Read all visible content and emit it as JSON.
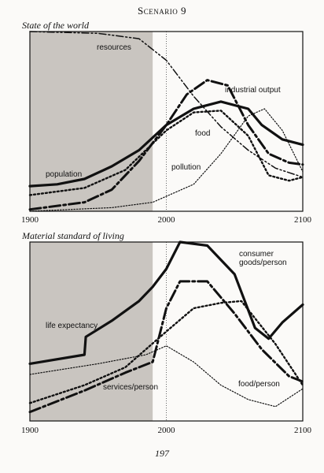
{
  "header": {
    "title": "Scenario 9"
  },
  "page_number": "197",
  "chart_data": [
    {
      "type": "line",
      "title": "State of the world",
      "xlim": [
        1900,
        2100
      ],
      "x_ticks": [
        "1900",
        "2000",
        "2100"
      ],
      "historical_region": [
        1900,
        1990
      ],
      "present_marker": 2000,
      "series": [
        {
          "name": "resources",
          "style": "dash-dot-dot",
          "points": [
            [
              1900,
              1.0
            ],
            [
              1950,
              0.99
            ],
            [
              1980,
              0.96
            ],
            [
              2000,
              0.84
            ],
            [
              2020,
              0.64
            ],
            [
              2040,
              0.47
            ],
            [
              2060,
              0.34
            ],
            [
              2080,
              0.24
            ],
            [
              2100,
              0.19
            ]
          ]
        },
        {
          "name": "population",
          "style": "thick-solid",
          "points": [
            [
              1900,
              0.14
            ],
            [
              1920,
              0.15
            ],
            [
              1940,
              0.18
            ],
            [
              1960,
              0.25
            ],
            [
              1980,
              0.34
            ],
            [
              2000,
              0.48
            ],
            [
              2020,
              0.57
            ],
            [
              2040,
              0.61
            ],
            [
              2060,
              0.57
            ],
            [
              2070,
              0.48
            ],
            [
              2085,
              0.4
            ],
            [
              2100,
              0.37
            ]
          ]
        },
        {
          "name": "industrial output",
          "style": "thick-dash-dot",
          "points": [
            [
              1900,
              0.01
            ],
            [
              1940,
              0.05
            ],
            [
              1960,
              0.12
            ],
            [
              1980,
              0.28
            ],
            [
              2000,
              0.48
            ],
            [
              2015,
              0.65
            ],
            [
              2030,
              0.73
            ],
            [
              2045,
              0.7
            ],
            [
              2060,
              0.48
            ],
            [
              2075,
              0.32
            ],
            [
              2090,
              0.27
            ],
            [
              2100,
              0.26
            ]
          ]
        },
        {
          "name": "food",
          "style": "dotted",
          "points": [
            [
              1900,
              0.09
            ],
            [
              1940,
              0.13
            ],
            [
              1970,
              0.23
            ],
            [
              2000,
              0.45
            ],
            [
              2020,
              0.55
            ],
            [
              2040,
              0.56
            ],
            [
              2060,
              0.42
            ],
            [
              2075,
              0.2
            ],
            [
              2090,
              0.17
            ],
            [
              2100,
              0.19
            ]
          ]
        },
        {
          "name": "pollution",
          "style": "thin-dotted",
          "points": [
            [
              1900,
              0.0
            ],
            [
              1960,
              0.02
            ],
            [
              1990,
              0.05
            ],
            [
              2020,
              0.15
            ],
            [
              2040,
              0.32
            ],
            [
              2060,
              0.53
            ],
            [
              2072,
              0.57
            ],
            [
              2085,
              0.45
            ],
            [
              2100,
              0.22
            ]
          ]
        }
      ]
    },
    {
      "type": "line",
      "title": "Material standard of living",
      "xlim": [
        1900,
        2100
      ],
      "x_ticks": [
        "1900",
        "2000",
        "2100"
      ],
      "historical_region": [
        1900,
        1990
      ],
      "present_marker": 2000,
      "series": [
        {
          "name": "life expectancy",
          "style": "thick-solid",
          "points": [
            [
              1900,
              0.32
            ],
            [
              1940,
              0.37
            ],
            [
              1941,
              0.47
            ],
            [
              1960,
              0.56
            ],
            [
              1980,
              0.67
            ],
            [
              1990,
              0.75
            ],
            [
              2000,
              0.85
            ],
            [
              2010,
              1.0
            ],
            [
              2030,
              0.98
            ],
            [
              2050,
              0.82
            ],
            [
              2065,
              0.52
            ],
            [
              2075,
              0.46
            ],
            [
              2085,
              0.55
            ],
            [
              2100,
              0.65
            ]
          ]
        },
        {
          "name": "consumer goods/person",
          "style": "thick-dash-dot",
          "points": [
            [
              1900,
              0.05
            ],
            [
              1940,
              0.17
            ],
            [
              1970,
              0.27
            ],
            [
              1990,
              0.33
            ],
            [
              2000,
              0.63
            ],
            [
              2010,
              0.78
            ],
            [
              2030,
              0.78
            ],
            [
              2050,
              0.6
            ],
            [
              2070,
              0.4
            ],
            [
              2090,
              0.25
            ],
            [
              2100,
              0.22
            ]
          ]
        },
        {
          "name": "services/person",
          "style": "dotted",
          "points": [
            [
              1900,
              0.1
            ],
            [
              1940,
              0.2
            ],
            [
              1970,
              0.3
            ],
            [
              2000,
              0.5
            ],
            [
              2020,
              0.63
            ],
            [
              2040,
              0.66
            ],
            [
              2055,
              0.67
            ],
            [
              2080,
              0.43
            ],
            [
              2100,
              0.2
            ]
          ]
        },
        {
          "name": "food/person",
          "style": "thin-dotted",
          "points": [
            [
              1900,
              0.26
            ],
            [
              1950,
              0.32
            ],
            [
              1985,
              0.37
            ],
            [
              2000,
              0.42
            ],
            [
              2020,
              0.33
            ],
            [
              2040,
              0.2
            ],
            [
              2060,
              0.12
            ],
            [
              2080,
              0.08
            ],
            [
              2100,
              0.18
            ]
          ]
        }
      ]
    }
  ]
}
